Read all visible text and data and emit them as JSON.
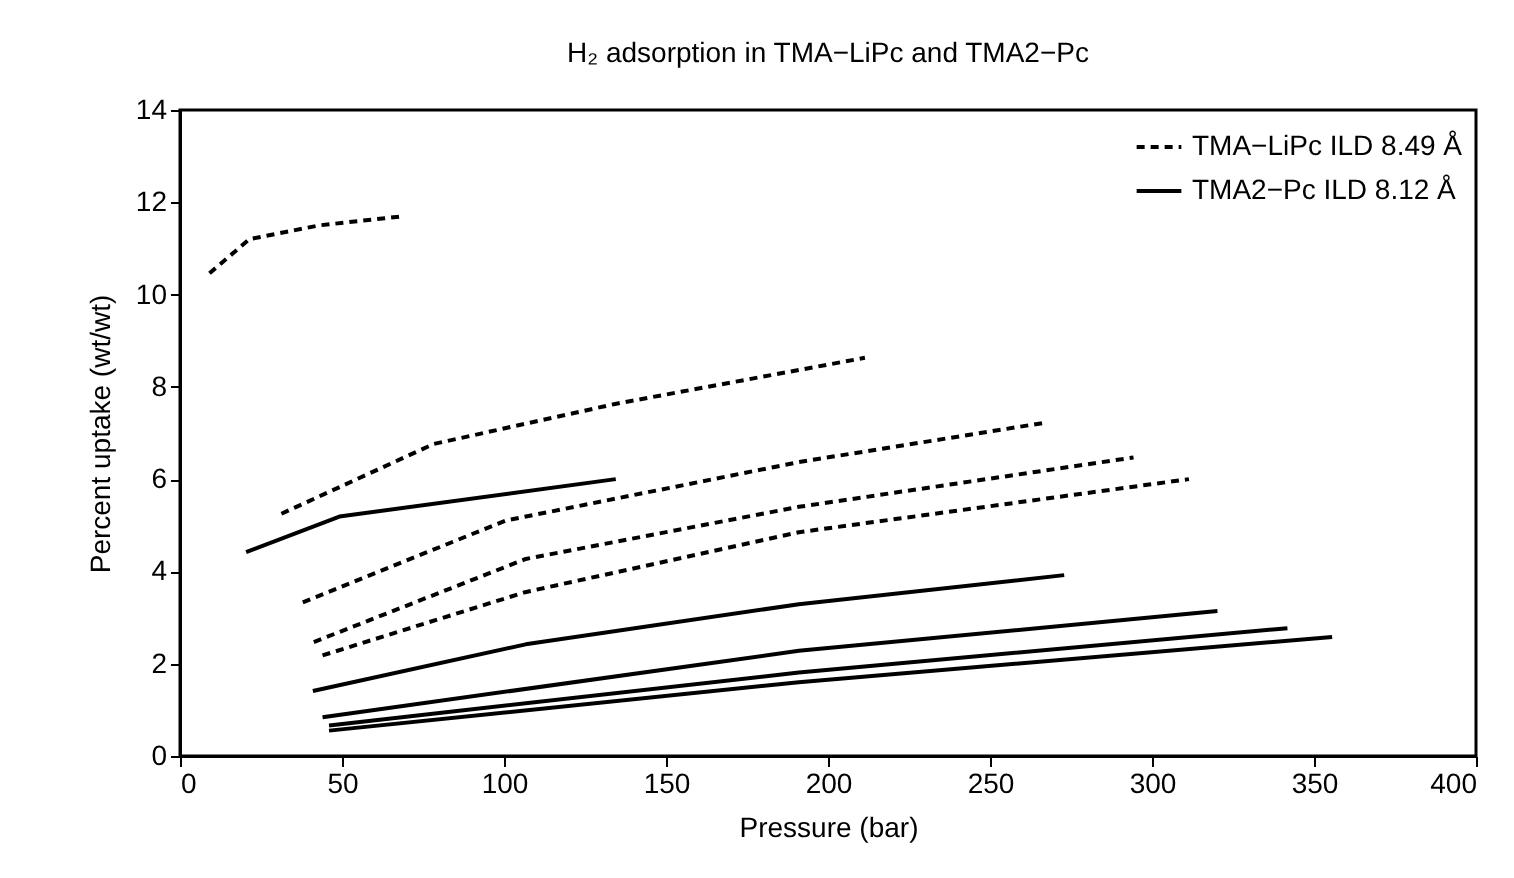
{
  "chart_data": {
    "type": "line",
    "title": "H₂ adsorption in TMA−LiPc and TMA2−Pc",
    "xlabel": "Pressure (bar)",
    "ylabel": "Percent uptake (wt/wt)",
    "xlim": [
      0,
      400
    ],
    "xticks": [
      0,
      50,
      100,
      150,
      200,
      250,
      300,
      350,
      400
    ],
    "ylim": [
      0,
      14
    ],
    "yticks": [
      0,
      2,
      4,
      6,
      8,
      10,
      12,
      14
    ],
    "legend": "top right",
    "grid": false,
    "series": [
      {
        "name": "TMA−LiPc ILD 8.49 Å",
        "color": "#000000",
        "line_style": "dashed",
        "x": [
          9.1,
          21.4,
          43,
          69.3
        ],
        "values": [
          10.46,
          11.2,
          11.5,
          11.7
        ]
      },
      {
        "color": "#000000",
        "line_style": "dashed",
        "x": [
          31.3,
          78.2,
          134.3,
          211.4
        ],
        "values": [
          5.25,
          6.76,
          7.63,
          8.63
        ]
      },
      {
        "color": "#000000",
        "line_style": "dashed",
        "x": [
          37.9,
          100.4,
          191,
          266.7
        ],
        "values": [
          3.33,
          5.1,
          6.37,
          7.22
        ]
      },
      {
        "color": "#000000",
        "line_style": "dashed",
        "x": [
          41.3,
          106.7,
          191,
          294.3
        ],
        "values": [
          2.47,
          4.27,
          5.4,
          6.47
        ]
      },
      {
        "color": "#000000",
        "line_style": "dashed",
        "x": [
          44,
          106.5,
          191,
          311.4
        ],
        "values": [
          2.18,
          3.55,
          4.85,
          6.0
        ]
      },
      {
        "name": "TMA2−Pc ILD 8.12 Å",
        "color": "#000000",
        "line_style": "solid",
        "x": [
          20.4,
          49.2,
          134.5
        ],
        "values": [
          4.42,
          5.19,
          6.0
        ]
      },
      {
        "color": "#000000",
        "line_style": "solid",
        "x": [
          41,
          106.7,
          191,
          272.9
        ],
        "values": [
          1.41,
          2.42,
          3.29,
          3.92
        ]
      },
      {
        "color": "#000000",
        "line_style": "solid",
        "x": [
          44,
          191,
          320.2
        ],
        "values": [
          0.84,
          2.28,
          3.14
        ]
      },
      {
        "color": "#000000",
        "line_style": "solid",
        "x": [
          46,
          191,
          341.8
        ],
        "values": [
          0.66,
          1.81,
          2.77
        ]
      },
      {
        "color": "#000000",
        "line_style": "solid",
        "x": [
          46,
          191,
          355.6
        ],
        "values": [
          0.55,
          1.6,
          2.58
        ]
      }
    ]
  }
}
